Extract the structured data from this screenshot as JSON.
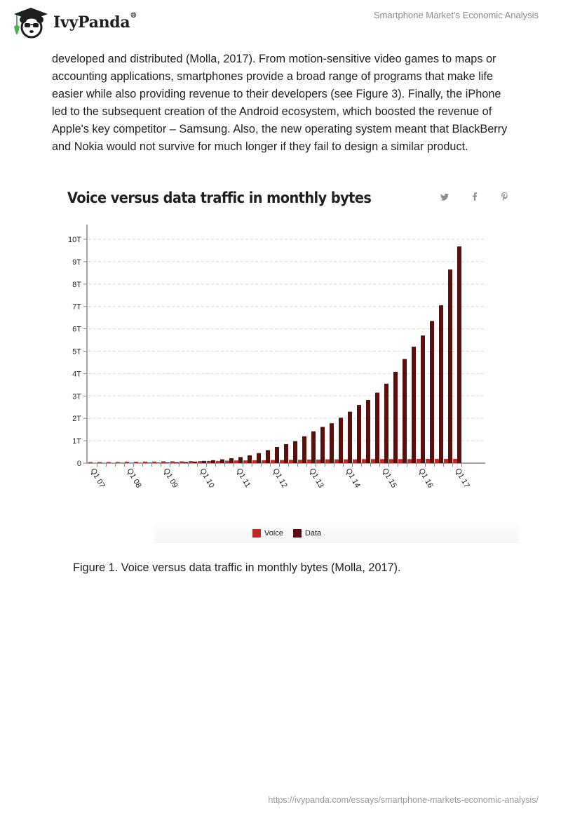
{
  "header": {
    "brand": "IvyPanda",
    "brand_mark": "®",
    "doc_title": "Smartphone Market's Economic Analysis"
  },
  "body_text": "developed and distributed (Molla, 2017). From motion-sensitive video games to maps or accounting applications, smartphones provide a broad range of programs that make life easier while also providing revenue to their developers (see Figure 3). Finally, the iPhone led to the subsequent creation of the Android ecosystem, which boosted the revenue of Apple's key competitor – Samsung. Also, the new operating system meant that BlackBerry and Nokia would not survive for much longer if they fail to design a similar product.",
  "figure": {
    "share_icons": [
      {
        "name": "twitter-icon",
        "glyph": "🐦"
      },
      {
        "name": "facebook-icon",
        "glyph": "f"
      },
      {
        "name": "pinterest-icon",
        "glyph": "P"
      }
    ],
    "caption": "Figure 1. Voice versus data traffic in monthly bytes (Molla, 2017)."
  },
  "colors": {
    "voice": "#c0282a",
    "data": "#5a0f0c",
    "axis": "#888888",
    "grid": "#d6d6d6"
  },
  "chart_data": {
    "type": "bar",
    "title": "Voice versus data traffic in monthly bytes",
    "xlabel": "",
    "ylabel": "",
    "ylim": [
      0,
      10.5
    ],
    "y_unit": "T",
    "y_ticks": [
      0,
      1,
      2,
      3,
      4,
      5,
      6,
      7,
      8,
      9,
      10
    ],
    "y_tick_labels": [
      "0",
      "1T",
      "2T",
      "3T",
      "4T",
      "5T",
      "6T",
      "7T",
      "8T",
      "9T",
      "10T"
    ],
    "grid": true,
    "legend_position": "bottom-center",
    "x_tick_labels": [
      "Q1 07",
      "Q1 08",
      "Q1 09",
      "Q1 10",
      "Q1 11",
      "Q1 12",
      "Q1 13",
      "Q1 14",
      "Q1 15",
      "Q1 16",
      "Q1 17"
    ],
    "categories": [
      "Q1 07",
      "Q2 07",
      "Q3 07",
      "Q4 07",
      "Q1 08",
      "Q2 08",
      "Q3 08",
      "Q4 08",
      "Q1 09",
      "Q2 09",
      "Q3 09",
      "Q4 09",
      "Q1 10",
      "Q2 10",
      "Q3 10",
      "Q4 10",
      "Q1 11",
      "Q2 11",
      "Q3 11",
      "Q4 11",
      "Q1 12",
      "Q2 12",
      "Q3 12",
      "Q4 12",
      "Q1 13",
      "Q2 13",
      "Q3 13",
      "Q4 13",
      "Q1 14",
      "Q2 14",
      "Q3 14",
      "Q4 14",
      "Q1 15",
      "Q2 15",
      "Q3 15",
      "Q4 15",
      "Q1 16",
      "Q2 16",
      "Q3 16",
      "Q4 16",
      "Q1 17"
    ],
    "series": [
      {
        "name": "Voice",
        "values": [
          0.02,
          0.04,
          0.05,
          0.05,
          0.06,
          0.06,
          0.07,
          0.07,
          0.08,
          0.08,
          0.08,
          0.09,
          0.09,
          0.1,
          0.1,
          0.11,
          0.12,
          0.12,
          0.13,
          0.13,
          0.14,
          0.14,
          0.15,
          0.15,
          0.16,
          0.16,
          0.17,
          0.17,
          0.17,
          0.17,
          0.18,
          0.18,
          0.18,
          0.18,
          0.18,
          0.18,
          0.19,
          0.19,
          0.19,
          0.19,
          0.19
        ]
      },
      {
        "name": "Data",
        "values": [
          0.0,
          0.0,
          0.0,
          0.01,
          0.01,
          0.01,
          0.02,
          0.02,
          0.03,
          0.04,
          0.05,
          0.07,
          0.1,
          0.13,
          0.17,
          0.22,
          0.27,
          0.35,
          0.45,
          0.58,
          0.72,
          0.85,
          0.98,
          1.2,
          1.42,
          1.62,
          1.78,
          2.03,
          2.3,
          2.6,
          2.82,
          3.15,
          3.55,
          4.08,
          4.65,
          5.2,
          5.7,
          6.35,
          7.05,
          8.65,
          9.68
        ]
      }
    ]
  },
  "footer": {
    "url": "https://ivypanda.com/essays/smartphone-markets-economic-analysis/"
  }
}
